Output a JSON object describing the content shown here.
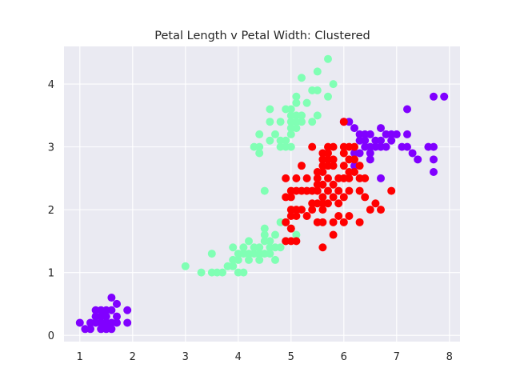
{
  "chart_data": {
    "type": "scatter",
    "title": "Petal Length v Petal Width: Clustered",
    "xlabel": "",
    "ylabel": "",
    "xlim": [
      0.7,
      8.2
    ],
    "ylim": [
      -0.1,
      4.6
    ],
    "xticks": [
      1,
      2,
      3,
      4,
      5,
      6,
      7,
      8
    ],
    "yticks": [
      0,
      1,
      2,
      3,
      4
    ],
    "grid": true,
    "background": "#eaeaf2",
    "grid_color": "#ffffff",
    "series": [
      {
        "color": "#8000ff",
        "points": [
          [
            1.0,
            0.2
          ],
          [
            1.1,
            0.1
          ],
          [
            1.2,
            0.2
          ],
          [
            1.3,
            0.2
          ],
          [
            1.3,
            0.3
          ],
          [
            1.3,
            0.4
          ],
          [
            1.4,
            0.1
          ],
          [
            1.4,
            0.2
          ],
          [
            1.4,
            0.3
          ],
          [
            1.4,
            0.4
          ],
          [
            1.5,
            0.1
          ],
          [
            1.5,
            0.2
          ],
          [
            1.5,
            0.3
          ],
          [
            1.5,
            0.4
          ],
          [
            1.6,
            0.2
          ],
          [
            1.6,
            0.4
          ],
          [
            1.6,
            0.6
          ],
          [
            1.7,
            0.2
          ],
          [
            1.7,
            0.3
          ],
          [
            1.7,
            0.5
          ],
          [
            1.9,
            0.2
          ],
          [
            1.9,
            0.4
          ],
          [
            1.2,
            0.1
          ],
          [
            1.6,
            0.1
          ],
          [
            1.5,
            0.15
          ],
          [
            1.45,
            0.35
          ],
          [
            6.0,
            3.4
          ],
          [
            6.1,
            3.4
          ],
          [
            6.2,
            3.3
          ],
          [
            6.3,
            3.1
          ],
          [
            6.3,
            3.2
          ],
          [
            6.4,
            3.0
          ],
          [
            6.4,
            3.1
          ],
          [
            6.4,
            3.2
          ],
          [
            6.5,
            2.8
          ],
          [
            6.5,
            2.9
          ],
          [
            6.5,
            3.0
          ],
          [
            6.5,
            3.2
          ],
          [
            6.6,
            3.0
          ],
          [
            6.6,
            3.1
          ],
          [
            6.7,
            2.5
          ],
          [
            6.7,
            3.0
          ],
          [
            6.7,
            3.1
          ],
          [
            6.7,
            3.3
          ],
          [
            6.8,
            3.0
          ],
          [
            6.8,
            3.2
          ],
          [
            6.9,
            3.1
          ],
          [
            6.9,
            3.2
          ],
          [
            7.0,
            3.2
          ],
          [
            7.1,
            3.0
          ],
          [
            7.2,
            3.0
          ],
          [
            7.2,
            3.2
          ],
          [
            7.2,
            3.6
          ],
          [
            7.3,
            2.9
          ],
          [
            7.4,
            2.8
          ],
          [
            7.6,
            3.0
          ],
          [
            7.7,
            2.6
          ],
          [
            7.7,
            2.8
          ],
          [
            7.7,
            3.0
          ],
          [
            7.7,
            3.8
          ],
          [
            7.9,
            3.8
          ],
          [
            6.3,
            2.9
          ],
          [
            6.2,
            2.9
          ],
          [
            6.2,
            2.7
          ]
        ]
      },
      {
        "color": "#80ffb4",
        "points": [
          [
            3.0,
            1.1
          ],
          [
            3.3,
            1.0
          ],
          [
            3.5,
            1.0
          ],
          [
            3.5,
            1.3
          ],
          [
            3.6,
            1.0
          ],
          [
            3.7,
            1.0
          ],
          [
            3.8,
            1.1
          ],
          [
            3.9,
            1.1
          ],
          [
            3.9,
            1.2
          ],
          [
            3.9,
            1.4
          ],
          [
            4.0,
            1.0
          ],
          [
            4.0,
            1.2
          ],
          [
            4.0,
            1.3
          ],
          [
            4.1,
            1.0
          ],
          [
            4.1,
            1.3
          ],
          [
            4.2,
            1.2
          ],
          [
            4.2,
            1.3
          ],
          [
            4.2,
            1.5
          ],
          [
            4.3,
            1.3
          ],
          [
            4.4,
            1.2
          ],
          [
            4.4,
            1.3
          ],
          [
            4.4,
            1.4
          ],
          [
            4.5,
            1.3
          ],
          [
            4.5,
            1.5
          ],
          [
            4.5,
            1.7
          ],
          [
            4.6,
            1.3
          ],
          [
            4.6,
            1.4
          ],
          [
            4.6,
            1.5
          ],
          [
            4.7,
            1.2
          ],
          [
            4.7,
            1.4
          ],
          [
            4.7,
            1.6
          ],
          [
            4.8,
            1.4
          ],
          [
            4.8,
            1.8
          ],
          [
            4.9,
            1.5
          ],
          [
            4.9,
            1.8
          ],
          [
            5.0,
            1.7
          ],
          [
            5.1,
            1.6
          ],
          [
            4.1,
            1.4
          ],
          [
            4.3,
            1.4
          ],
          [
            4.5,
            1.6
          ],
          [
            4.4,
            3.0
          ],
          [
            4.4,
            2.9
          ],
          [
            4.4,
            3.2
          ],
          [
            4.5,
            2.3
          ],
          [
            4.6,
            3.1
          ],
          [
            4.6,
            3.4
          ],
          [
            4.6,
            3.6
          ],
          [
            4.7,
            3.2
          ],
          [
            4.8,
            3.0
          ],
          [
            4.8,
            3.1
          ],
          [
            4.8,
            3.4
          ],
          [
            4.9,
            3.0
          ],
          [
            4.9,
            3.1
          ],
          [
            4.9,
            3.6
          ],
          [
            5.0,
            3.0
          ],
          [
            5.0,
            3.2
          ],
          [
            5.0,
            3.3
          ],
          [
            5.0,
            3.4
          ],
          [
            5.0,
            3.5
          ],
          [
            5.0,
            3.6
          ],
          [
            5.1,
            3.3
          ],
          [
            5.1,
            3.5
          ],
          [
            5.1,
            3.7
          ],
          [
            5.1,
            3.8
          ],
          [
            5.2,
            3.4
          ],
          [
            5.2,
            3.5
          ],
          [
            5.2,
            4.1
          ],
          [
            5.3,
            3.7
          ],
          [
            5.4,
            3.4
          ],
          [
            5.4,
            3.9
          ],
          [
            5.5,
            3.5
          ],
          [
            5.5,
            4.2
          ],
          [
            5.7,
            3.8
          ],
          [
            5.7,
            4.4
          ],
          [
            5.8,
            4.0
          ],
          [
            5.5,
            3.9
          ],
          [
            4.3,
            3.0
          ],
          [
            5.1,
            3.4
          ]
        ]
      },
      {
        "color": "#ff0000",
        "points": [
          [
            4.9,
            1.5
          ],
          [
            4.9,
            1.8
          ],
          [
            5.0,
            1.5
          ],
          [
            5.0,
            1.7
          ],
          [
            5.0,
            2.0
          ],
          [
            5.0,
            2.3
          ],
          [
            5.1,
            1.5
          ],
          [
            5.1,
            1.9
          ],
          [
            5.1,
            2.0
          ],
          [
            5.1,
            2.3
          ],
          [
            5.1,
            2.5
          ],
          [
            5.2,
            2.0
          ],
          [
            5.2,
            2.3
          ],
          [
            5.3,
            1.9
          ],
          [
            5.3,
            2.3
          ],
          [
            5.4,
            2.1
          ],
          [
            5.4,
            2.3
          ],
          [
            5.5,
            1.8
          ],
          [
            5.5,
            2.1
          ],
          [
            5.5,
            2.4
          ],
          [
            5.6,
            1.4
          ],
          [
            5.6,
            1.8
          ],
          [
            5.6,
            2.1
          ],
          [
            5.6,
            2.2
          ],
          [
            5.6,
            2.4
          ],
          [
            5.7,
            2.1
          ],
          [
            5.7,
            2.3
          ],
          [
            5.7,
            2.5
          ],
          [
            5.8,
            1.8
          ],
          [
            5.8,
            2.2
          ],
          [
            5.9,
            2.1
          ],
          [
            5.9,
            2.3
          ],
          [
            6.0,
            1.8
          ],
          [
            6.0,
            2.5
          ],
          [
            5.8,
            1.6
          ],
          [
            5.9,
            1.9
          ],
          [
            6.1,
            1.9
          ],
          [
            6.1,
            2.3
          ],
          [
            6.1,
            2.5
          ],
          [
            6.3,
            1.8
          ],
          [
            6.3,
            2.5
          ],
          [
            6.4,
            2.2
          ],
          [
            6.5,
            2.0
          ],
          [
            6.6,
            2.1
          ],
          [
            6.7,
            2.0
          ],
          [
            6.9,
            2.3
          ],
          [
            4.9,
            2.2
          ],
          [
            5.0,
            2.2
          ],
          [
            5.3,
            2.5
          ],
          [
            5.5,
            2.6
          ],
          [
            5.6,
            2.6
          ],
          [
            5.7,
            2.7
          ],
          [
            5.7,
            2.8
          ],
          [
            5.7,
            2.9
          ],
          [
            5.7,
            3.0
          ],
          [
            5.8,
            2.7
          ],
          [
            5.8,
            2.8
          ],
          [
            5.6,
            2.8
          ],
          [
            5.6,
            2.9
          ],
          [
            5.5,
            2.5
          ],
          [
            5.8,
            3.0
          ],
          [
            5.9,
            2.5
          ],
          [
            6.0,
            2.2
          ],
          [
            6.0,
            2.7
          ],
          [
            6.0,
            3.4
          ],
          [
            6.1,
            2.6
          ],
          [
            6.1,
            3.0
          ],
          [
            6.2,
            2.8
          ],
          [
            6.2,
            2.6
          ],
          [
            6.3,
            2.7
          ],
          [
            6.3,
            2.3
          ],
          [
            5.4,
            3.0
          ],
          [
            5.6,
            2.7
          ],
          [
            6.0,
            3.0
          ],
          [
            6.0,
            2.9
          ],
          [
            5.2,
            2.7
          ],
          [
            6.4,
            2.5
          ],
          [
            5.5,
            2.3
          ],
          [
            6.2,
            3.0
          ],
          [
            5.8,
            2.4
          ],
          [
            5.6,
            2.0
          ],
          [
            5.4,
            2.0
          ],
          [
            4.9,
            2.5
          ],
          [
            6.1,
            2.8
          ],
          [
            5.0,
            1.9
          ]
        ]
      }
    ]
  }
}
